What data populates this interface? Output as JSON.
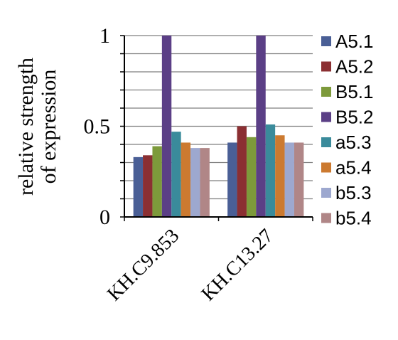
{
  "chart_data": {
    "type": "bar",
    "title": "",
    "xlabel": "",
    "ylabel_lines": [
      "relative strength",
      "of expression"
    ],
    "ylim": [
      0,
      1
    ],
    "yticks": [
      0,
      0.5,
      1
    ],
    "ytick_labels": [
      "0",
      "0.5",
      "1"
    ],
    "grid": true,
    "legend_position": "right",
    "categories": [
      "KH.C9.853",
      "KH.C13.27"
    ],
    "series": [
      {
        "name": "A5.1",
        "color": "#4a5f96",
        "values": [
          0.33,
          0.41
        ]
      },
      {
        "name": "A5.2",
        "color": "#8b2f32",
        "values": [
          0.34,
          0.5
        ]
      },
      {
        "name": "B5.1",
        "color": "#7d9a3b",
        "values": [
          0.39,
          0.44
        ]
      },
      {
        "name": "B5.2",
        "color": "#5b3f86",
        "values": [
          1.0,
          1.0
        ]
      },
      {
        "name": "a5.3",
        "color": "#3a8b9b",
        "values": [
          0.47,
          0.51
        ]
      },
      {
        "name": "a5.4",
        "color": "#cc7a30",
        "values": [
          0.41,
          0.45
        ]
      },
      {
        "name": "b5.3",
        "color": "#9da8cf",
        "values": [
          0.38,
          0.41
        ]
      },
      {
        "name": "b5.4",
        "color": "#b08687",
        "values": [
          0.38,
          0.41
        ]
      }
    ]
  }
}
